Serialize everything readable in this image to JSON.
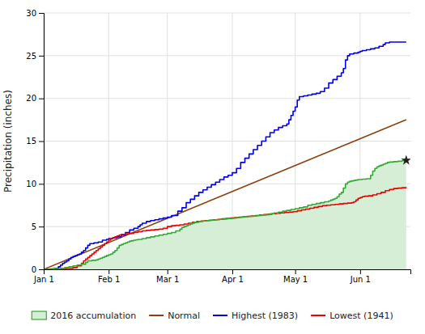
{
  "chart_data": {
    "type": "line",
    "ylabel": "Precipitation (inches)",
    "xlim": [
      0,
      175
    ],
    "xticks": [
      {
        "value": 0,
        "label": "Jan 1"
      },
      {
        "value": 31,
        "label": "Feb 1"
      },
      {
        "value": 59,
        "label": "Mar 1"
      },
      {
        "value": 90,
        "label": "Apr 1"
      },
      {
        "value": 120,
        "label": "May 1"
      },
      {
        "value": 151,
        "label": "Jun 1"
      }
    ],
    "ylim": [
      0,
      30
    ],
    "yticks": [
      0,
      5,
      10,
      15,
      20,
      25,
      30
    ],
    "grid": true,
    "legend": "bottom",
    "series": [
      {
        "name": "2016 accumulation",
        "type": "area",
        "line_style": "step",
        "color": "#33aa33",
        "x": [
          0,
          4,
          8,
          10,
          12,
          14,
          16,
          18,
          20,
          21,
          23,
          25,
          26,
          27,
          28,
          29,
          30,
          31,
          32,
          33,
          34,
          35,
          36,
          37,
          38,
          39,
          40,
          41,
          42,
          43,
          44,
          45,
          47,
          49,
          51,
          53,
          55,
          57,
          59,
          61,
          63,
          65,
          66,
          67,
          68,
          69,
          70,
          71,
          72,
          74,
          76,
          78,
          80,
          82,
          84,
          86,
          88,
          90,
          92,
          94,
          96,
          98,
          100,
          102,
          104,
          106,
          108,
          110,
          112,
          114,
          116,
          118,
          120,
          122,
          124,
          126,
          128,
          130,
          132,
          134,
          136,
          137,
          138,
          139,
          140,
          141,
          142,
          143,
          144,
          145,
          146,
          147,
          148,
          149,
          150,
          152,
          154,
          156,
          157,
          158,
          159,
          160,
          161,
          162,
          163,
          164,
          165,
          167,
          169,
          171,
          173
        ],
        "values": [
          0.0,
          0.05,
          0.1,
          0.2,
          0.3,
          0.4,
          0.5,
          0.6,
          0.8,
          1.0,
          1.05,
          1.1,
          1.2,
          1.3,
          1.4,
          1.5,
          1.6,
          1.7,
          1.8,
          2.0,
          2.2,
          2.5,
          2.8,
          2.9,
          3.0,
          3.1,
          3.2,
          3.3,
          3.35,
          3.4,
          3.45,
          3.5,
          3.6,
          3.7,
          3.8,
          3.9,
          4.0,
          4.1,
          4.2,
          4.3,
          4.5,
          4.7,
          4.9,
          5.0,
          5.1,
          5.2,
          5.3,
          5.4,
          5.5,
          5.6,
          5.65,
          5.7,
          5.75,
          5.8,
          5.85,
          5.9,
          5.95,
          6.0,
          6.05,
          6.1,
          6.15,
          6.2,
          6.25,
          6.3,
          6.35,
          6.4,
          6.5,
          6.6,
          6.7,
          6.8,
          6.9,
          7.0,
          7.1,
          7.2,
          7.3,
          7.5,
          7.6,
          7.7,
          7.8,
          7.9,
          8.0,
          8.1,
          8.2,
          8.3,
          8.5,
          8.8,
          9.0,
          9.5,
          10.0,
          10.2,
          10.3,
          10.35,
          10.4,
          10.45,
          10.5,
          10.55,
          10.6,
          11.0,
          11.5,
          11.8,
          12.0,
          12.1,
          12.2,
          12.3,
          12.4,
          12.5,
          12.55,
          12.6,
          12.65,
          12.7,
          12.75
        ]
      },
      {
        "name": "Normal",
        "type": "line",
        "color": "#8B4010",
        "x": [
          0,
          173
        ],
        "values": [
          0.0,
          17.5
        ]
      },
      {
        "name": "Highest (1983)",
        "type": "line",
        "line_style": "step",
        "color": "#0000EE",
        "x": [
          0,
          3,
          5,
          7,
          8,
          9,
          10,
          11,
          12,
          13,
          14,
          15,
          16,
          17,
          18,
          19,
          20,
          21,
          22,
          24,
          26,
          28,
          30,
          31,
          33,
          35,
          37,
          39,
          41,
          43,
          45,
          46,
          47,
          49,
          51,
          53,
          55,
          57,
          59,
          61,
          64,
          66,
          68,
          70,
          72,
          74,
          76,
          78,
          80,
          82,
          84,
          86,
          88,
          90,
          92,
          94,
          96,
          98,
          100,
          102,
          104,
          106,
          108,
          110,
          112,
          114,
          116,
          117,
          118,
          119,
          120,
          121,
          122,
          124,
          126,
          128,
          130,
          132,
          134,
          136,
          138,
          140,
          142,
          143,
          144,
          145,
          146,
          148,
          150,
          151,
          152,
          154,
          156,
          158,
          160,
          162,
          163,
          165,
          173
        ],
        "values": [
          0.0,
          0.05,
          0.1,
          0.3,
          0.5,
          0.7,
          0.85,
          1.0,
          1.2,
          1.4,
          1.5,
          1.6,
          1.7,
          1.8,
          2.0,
          2.2,
          2.5,
          2.8,
          3.0,
          3.1,
          3.2,
          3.4,
          3.5,
          3.6,
          3.7,
          3.8,
          4.0,
          4.3,
          4.6,
          4.8,
          5.0,
          5.2,
          5.4,
          5.6,
          5.7,
          5.8,
          5.9,
          6.0,
          6.1,
          6.3,
          6.8,
          7.2,
          7.8,
          8.2,
          8.6,
          9.0,
          9.3,
          9.6,
          9.9,
          10.2,
          10.5,
          10.8,
          11.0,
          11.3,
          11.8,
          12.5,
          13.0,
          13.5,
          14.0,
          14.5,
          15.0,
          15.5,
          16.0,
          16.3,
          16.6,
          16.8,
          17.0,
          17.5,
          18.0,
          18.5,
          19.0,
          19.8,
          20.2,
          20.3,
          20.4,
          20.5,
          20.6,
          20.8,
          21.2,
          21.8,
          22.2,
          22.6,
          23.0,
          23.5,
          24.5,
          25.0,
          25.2,
          25.3,
          25.4,
          25.5,
          25.6,
          25.7,
          25.8,
          25.9,
          26.1,
          26.3,
          26.5,
          26.6,
          26.6
        ]
      },
      {
        "name": "Lowest (1941)",
        "type": "line",
        "line_style": "step",
        "color": "#EE0000",
        "x": [
          0,
          2,
          5,
          8,
          11,
          14,
          16,
          18,
          19,
          20,
          21,
          22,
          23,
          24,
          25,
          26,
          27,
          28,
          29,
          30,
          31,
          32,
          33,
          34,
          35,
          36,
          37,
          39,
          41,
          43,
          45,
          47,
          49,
          51,
          53,
          55,
          57,
          59,
          61,
          63,
          65,
          67,
          69,
          71,
          73,
          75,
          77,
          79,
          81,
          83,
          85,
          87,
          89,
          91,
          93,
          95,
          97,
          99,
          101,
          103,
          105,
          107,
          109,
          111,
          113,
          115,
          117,
          119,
          121,
          123,
          125,
          127,
          129,
          131,
          133,
          135,
          137,
          139,
          141,
          143,
          145,
          147,
          148,
          149,
          150,
          151,
          152,
          153,
          155,
          157,
          159,
          161,
          163,
          165,
          167,
          169,
          171,
          173
        ],
        "values": [
          0.0,
          0.02,
          0.05,
          0.07,
          0.1,
          0.2,
          0.4,
          0.7,
          1.0,
          1.2,
          1.4,
          1.6,
          1.8,
          2.0,
          2.2,
          2.4,
          2.6,
          2.8,
          3.0,
          3.2,
          3.4,
          3.6,
          3.7,
          3.8,
          3.9,
          4.0,
          4.1,
          4.15,
          4.2,
          4.3,
          4.4,
          4.5,
          4.55,
          4.6,
          4.65,
          4.7,
          4.8,
          5.0,
          5.1,
          5.15,
          5.2,
          5.3,
          5.4,
          5.5,
          5.6,
          5.65,
          5.7,
          5.75,
          5.8,
          5.85,
          5.9,
          5.95,
          6.0,
          6.05,
          6.1,
          6.15,
          6.2,
          6.25,
          6.3,
          6.35,
          6.4,
          6.45,
          6.5,
          6.55,
          6.6,
          6.65,
          6.7,
          6.75,
          6.85,
          6.95,
          7.05,
          7.15,
          7.25,
          7.35,
          7.45,
          7.5,
          7.55,
          7.6,
          7.65,
          7.7,
          7.75,
          7.8,
          7.9,
          8.1,
          8.3,
          8.4,
          8.5,
          8.55,
          8.6,
          8.7,
          8.85,
          9.0,
          9.2,
          9.35,
          9.45,
          9.5,
          9.55,
          9.6
        ]
      },
      {
        "type": "scatter",
        "marker": "star",
        "color": "#222222",
        "x": [
          173
        ],
        "values": [
          12.75
        ]
      }
    ]
  }
}
